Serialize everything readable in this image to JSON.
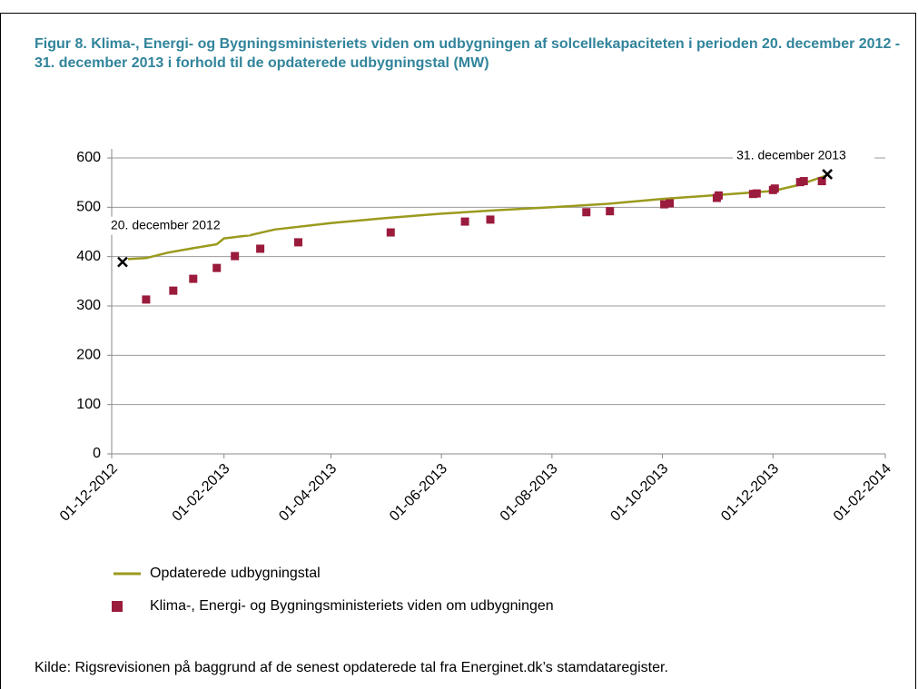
{
  "chart_data": {
    "type": "line",
    "title": "Figur 8. Klima-, Energi- og Bygningsministeriets viden om udbygningen af solcellekapaciteten i perioden 20. december 2012 - 31. december 2013 i forhold til de opdaterede udbygningstal (MW)",
    "source": "Kilde:  Rigsrevisionen på baggrund af de senest opdaterede tal fra Energinet.dk’s stamdataregister.",
    "xlim": [
      "01-12-2012",
      "01-02-2014"
    ],
    "xticks": [
      "01-12-2012",
      "01-02-2013",
      "01-04-2013",
      "01-06-2013",
      "01-08-2013",
      "01-10-2013",
      "01-12-2013",
      "01-02-2014"
    ],
    "ylim": [
      0,
      600
    ],
    "yticks": [
      0,
      100,
      200,
      300,
      400,
      500,
      600
    ],
    "grid": true,
    "series": [
      {
        "name": "Opdaterede udbygningstal",
        "type": "line",
        "color": "#9a9a1e",
        "x": [
          "10-12-2012",
          "20-12-2012",
          "01-01-2013",
          "15-01-2013",
          "28-01-2013",
          "01-02-2013",
          "15-02-2013",
          "01-03-2013",
          "01-04-2013",
          "01-05-2013",
          "01-06-2013",
          "01-07-2013",
          "01-08-2013",
          "01-09-2013",
          "01-10-2013",
          "01-11-2013",
          "01-12-2013",
          "15-12-2013",
          "31-12-2013"
        ],
        "values": [
          395,
          397,
          408,
          417,
          425,
          437,
          443,
          455,
          468,
          478,
          487,
          494,
          500,
          507,
          517,
          525,
          533,
          545,
          565
        ]
      },
      {
        "name": "Klima-, Energi- og Bygningsministeriets viden om udbygningen",
        "type": "scatter",
        "color": "#9b1b3c",
        "x": [
          "20-12-2012",
          "04-01-2013",
          "15-01-2013",
          "28-01-2013",
          "07-02-2013",
          "21-02-2013",
          "14-03-2013",
          "04-05-2013",
          "14-06-2013",
          "28-06-2013",
          "20-08-2013",
          "02-09-2013",
          "02-10-2013",
          "05-10-2013",
          "31-10-2013",
          "01-11-2013",
          "20-11-2013",
          "22-11-2013",
          "01-12-2013",
          "02-12-2013",
          "16-12-2013",
          "18-12-2013",
          "28-12-2013"
        ],
        "values": [
          313,
          331,
          355,
          377,
          401,
          416,
          429,
          449,
          471,
          475,
          490,
          492,
          506,
          508,
          519,
          524,
          527,
          528,
          535,
          538,
          551,
          553,
          553
        ]
      }
    ],
    "annotations": [
      {
        "text": "20. december 2012",
        "x": "07-12-2012",
        "y": 389
      },
      {
        "text": "31. december 2013",
        "x": "31-12-2013",
        "y": 567
      }
    ]
  }
}
